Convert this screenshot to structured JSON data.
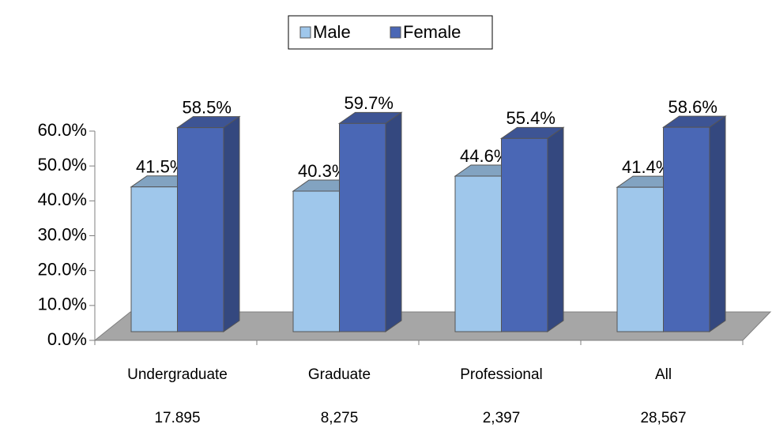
{
  "chart_data": {
    "type": "bar3d",
    "categories": [
      "Undergraduate",
      "Graduate",
      "Professional",
      "All"
    ],
    "annotations": [
      "17.895",
      "8,275",
      "2,397",
      "28,567"
    ],
    "series": [
      {
        "name": "Male",
        "color": "#9fc7eb",
        "values": [
          41.5,
          40.3,
          44.6,
          41.4
        ],
        "value_labels": [
          "41.5%",
          "40.3%",
          "44.6%",
          "41.4%"
        ]
      },
      {
        "name": "Female",
        "color": "#4a67b5",
        "values": [
          58.5,
          59.7,
          55.4,
          58.6
        ],
        "value_labels": [
          "58.5%",
          "59.7%",
          "55.4%",
          "58.6%"
        ]
      }
    ],
    "ylim": [
      0,
      60
    ],
    "yticks": [
      {
        "value": 0,
        "label": "0.0%"
      },
      {
        "value": 10,
        "label": "10.0%"
      },
      {
        "value": 20,
        "label": "20.0%"
      },
      {
        "value": 30,
        "label": "30.0%"
      },
      {
        "value": 40,
        "label": "40.0%"
      },
      {
        "value": 50,
        "label": "50.0%"
      },
      {
        "value": 60,
        "label": "60.0%"
      }
    ],
    "legend": "top"
  }
}
